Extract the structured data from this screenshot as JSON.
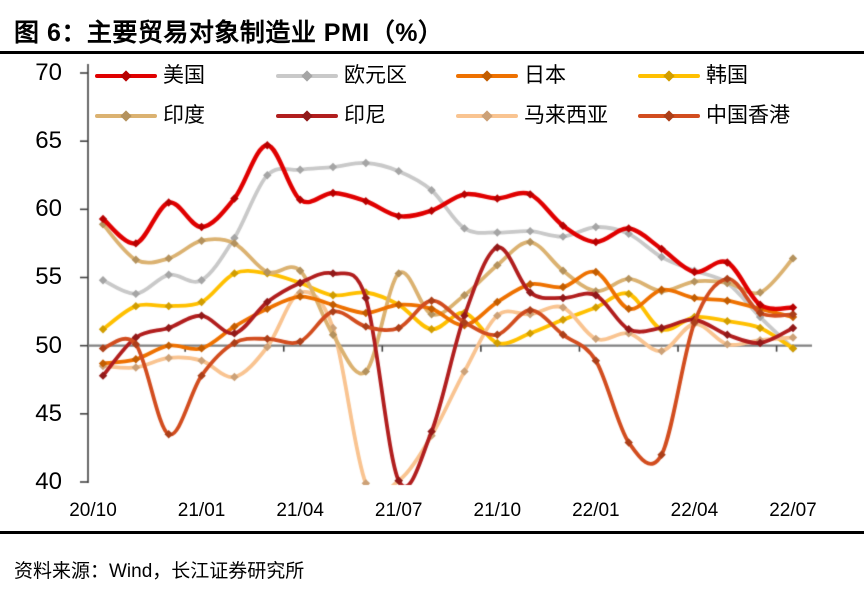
{
  "title": "图 6：主要贸易对象制造业 PMI（%）",
  "source": "资料来源：Wind，长江证券研究所",
  "chart_data": {
    "type": "line",
    "title": "主要贸易对象制造业PMI（%）",
    "x": [
      "20/10",
      "20/11",
      "20/12",
      "21/01",
      "21/02",
      "21/03",
      "21/04",
      "21/05",
      "21/06",
      "21/07",
      "21/08",
      "21/09",
      "21/10",
      "21/11",
      "21/12",
      "22/01",
      "22/02",
      "22/03",
      "22/04",
      "22/05",
      "22/06",
      "22/07"
    ],
    "x_tick_labels": [
      "20/10",
      "21/01",
      "21/04",
      "21/07",
      "21/10",
      "22/01",
      "22/04",
      "22/07"
    ],
    "y_tick_labels": [
      "70",
      "65",
      "60",
      "55",
      "50",
      "45",
      "40"
    ],
    "y_ticks": [
      70,
      65,
      60,
      55,
      50,
      45,
      40
    ],
    "ylim": [
      40,
      70
    ],
    "axis_cross_value": 50,
    "grid": false,
    "legend_position": "top",
    "line_style": "smooth",
    "marker": "diamond",
    "axis_color": "#404040",
    "zero_line_color": "#808080",
    "series": [
      {
        "name": "美国",
        "color": "#E00000",
        "values": [
          59.3,
          57.5,
          60.5,
          58.7,
          60.8,
          64.7,
          60.7,
          61.2,
          60.6,
          59.5,
          59.9,
          61.1,
          60.8,
          61.1,
          58.8,
          57.6,
          58.6,
          57.1,
          55.4,
          56.1,
          53.0,
          52.8
        ]
      },
      {
        "name": "欧元区",
        "color": "#C9C9C9",
        "values": [
          54.8,
          53.8,
          55.2,
          54.8,
          57.9,
          62.5,
          62.9,
          63.1,
          63.4,
          62.8,
          61.4,
          58.6,
          58.3,
          58.4,
          58.0,
          58.7,
          58.2,
          56.5,
          55.5,
          54.6,
          52.1,
          49.8
        ]
      },
      {
        "name": "日本",
        "color": "#EE7100",
        "values": [
          48.7,
          49.0,
          50.0,
          49.8,
          51.4,
          52.7,
          53.6,
          53.0,
          52.4,
          53.0,
          52.7,
          51.5,
          53.2,
          54.5,
          54.3,
          55.4,
          52.7,
          54.1,
          53.5,
          53.3,
          52.7,
          52.1
        ]
      },
      {
        "name": "韩国",
        "color": "#FFC000",
        "values": [
          51.2,
          52.9,
          52.9,
          53.2,
          55.3,
          55.3,
          54.6,
          53.7,
          53.9,
          53.0,
          51.2,
          52.4,
          50.2,
          50.9,
          51.9,
          52.8,
          53.8,
          51.2,
          52.1,
          51.8,
          51.3,
          49.8
        ]
      },
      {
        "name": "印度",
        "color": "#DBB271",
        "values": [
          58.9,
          56.3,
          56.4,
          57.7,
          57.5,
          55.4,
          55.5,
          50.8,
          48.1,
          55.3,
          52.3,
          53.7,
          55.9,
          57.6,
          55.5,
          54.0,
          54.9,
          54.0,
          54.7,
          54.6,
          53.9,
          56.4
        ]
      },
      {
        "name": "印尼",
        "color": "#B11E1E",
        "values": [
          47.8,
          50.6,
          51.3,
          52.2,
          50.9,
          53.2,
          54.6,
          55.3,
          53.5,
          40.1,
          43.7,
          52.2,
          57.2,
          53.9,
          53.5,
          53.7,
          51.2,
          51.3,
          51.9,
          50.8,
          50.2,
          51.3
        ]
      },
      {
        "name": "马来西亚",
        "color": "#F9C491",
        "values": [
          48.5,
          48.4,
          49.1,
          48.9,
          47.7,
          49.9,
          53.9,
          51.3,
          39.9,
          40.1,
          43.4,
          48.1,
          52.2,
          52.3,
          52.8,
          50.5,
          50.9,
          49.6,
          51.6,
          50.1,
          50.4,
          50.6
        ]
      },
      {
        "name": "中国香港",
        "color": "#D24D1F",
        "values": [
          49.8,
          50.1,
          43.5,
          47.8,
          50.2,
          50.5,
          50.3,
          52.5,
          51.4,
          51.3,
          53.3,
          51.7,
          50.8,
          52.6,
          50.8,
          48.9,
          42.9,
          42.0,
          51.7,
          54.9,
          52.4,
          52.3
        ]
      }
    ]
  }
}
